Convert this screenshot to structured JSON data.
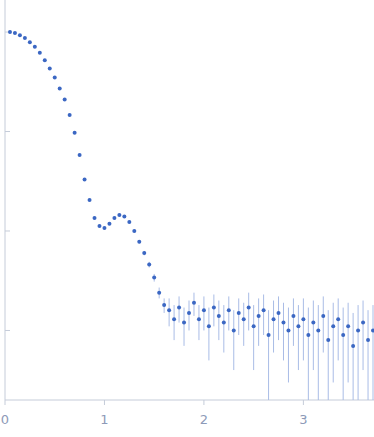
{
  "chart_data": {
    "type": "scatter",
    "log": "y",
    "tick_labels": "x",
    "marker": "circle",
    "color": "#3b67c3",
    "x": [
      0.05,
      0.1,
      0.15,
      0.2,
      0.25,
      0.3,
      0.35,
      0.4,
      0.45,
      0.5,
      0.55,
      0.6,
      0.65,
      0.7,
      0.75,
      0.8,
      0.85,
      0.9,
      0.95,
      1.0,
      1.05,
      1.1,
      1.15,
      1.2,
      1.25,
      1.3,
      1.35,
      1.4,
      1.45,
      1.5,
      1.55,
      1.6,
      1.65,
      1.7,
      1.75,
      1.8,
      1.85,
      1.9,
      1.95,
      2.0,
      2.05,
      2.1,
      2.15,
      2.2,
      2.25,
      2.3,
      2.35,
      2.4,
      2.45,
      2.5,
      2.55,
      2.6,
      2.65,
      2.7,
      2.75,
      2.8,
      2.85,
      2.9,
      2.95,
      3.0,
      3.05,
      3.1,
      3.15,
      3.2,
      3.25,
      3.3,
      3.35,
      3.4,
      3.45,
      3.5,
      3.55,
      3.6,
      3.65,
      3.7
    ],
    "values": [
      1.0,
      0.98,
      0.93,
      0.87,
      0.79,
      0.71,
      0.62,
      0.52,
      0.43,
      0.35,
      0.27,
      0.21,
      0.147,
      0.097,
      0.058,
      0.033,
      0.0205,
      0.0135,
      0.0112,
      0.0107,
      0.0118,
      0.0135,
      0.0145,
      0.014,
      0.0123,
      0.01,
      0.0078,
      0.006,
      0.0046,
      0.0034,
      0.0024,
      0.0018,
      0.0016,
      0.0013,
      0.0017,
      0.0012,
      0.0015,
      0.0019,
      0.0013,
      0.0016,
      0.0011,
      0.0017,
      0.0014,
      0.0012,
      0.0016,
      0.001,
      0.0015,
      0.0013,
      0.0017,
      0.0011,
      0.0014,
      0.0016,
      0.0009,
      0.0013,
      0.0015,
      0.0012,
      0.001,
      0.0014,
      0.0011,
      0.0013,
      0.0009,
      0.0012,
      0.001,
      0.0014,
      0.0008,
      0.0011,
      0.0013,
      0.0009,
      0.0011,
      0.0007,
      0.001,
      0.0012,
      0.0008,
      0.001
    ],
    "errors": [
      0.03,
      0.01,
      0.008,
      0.006,
      0.005,
      0.004,
      0.003,
      0.003,
      0.002,
      0.002,
      0.0015,
      0.0012,
      0.001,
      0.0008,
      0.0005,
      0.0004,
      0.0003,
      0.0003,
      0.0003,
      0.0003,
      0.0003,
      0.0003,
      0.0003,
      0.0003,
      0.0003,
      0.0003,
      0.0003,
      0.0003,
      0.0003,
      0.0003,
      0.0003,
      0.0003,
      0.0005,
      0.0005,
      0.0005,
      0.0005,
      0.0005,
      0.0005,
      0.0005,
      0.0006,
      0.0006,
      0.0006,
      0.0006,
      0.0006,
      0.0006,
      0.0006,
      0.0006,
      0.0006,
      0.0007,
      0.0007,
      0.0007,
      0.0007,
      0.0007,
      0.0007,
      0.0007,
      0.0007,
      0.0007,
      0.0007,
      0.0007,
      0.0008,
      0.0008,
      0.0008,
      0.0008,
      0.0008,
      0.0008,
      0.0008,
      0.0008,
      0.0008,
      0.0008,
      0.0008,
      0.0008,
      0.0008,
      0.0008,
      0.0008
    ],
    "xlim": [
      0,
      3.71
    ],
    "ylim": [
      0.0002,
      2.1
    ],
    "xticks": [
      0,
      1,
      2,
      3
    ],
    "yticks": [
      0.001,
      0.01,
      0.1,
      1
    ]
  }
}
